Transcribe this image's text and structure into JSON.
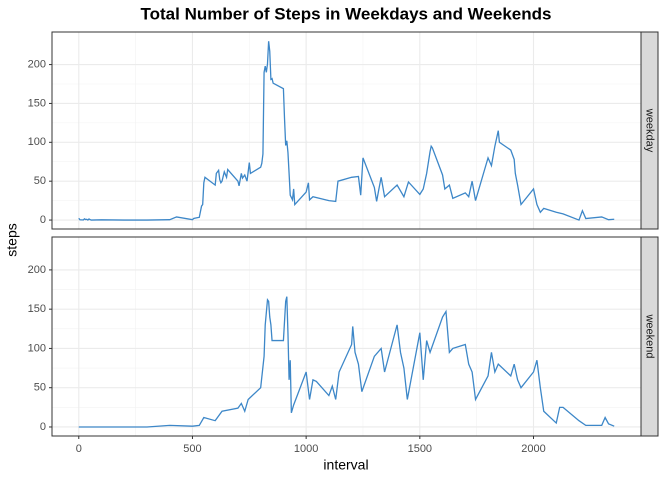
{
  "title": "Total Number of Steps in Weekdays and Weekends",
  "x_label": "interval",
  "y_label": "steps",
  "chart_data": [
    {
      "type": "line",
      "strip": "weekday",
      "color": "#3d87c8",
      "grid": true,
      "x": [
        0,
        5,
        10,
        15,
        20,
        25,
        30,
        35,
        40,
        45,
        50,
        55,
        100,
        200,
        300,
        400,
        430,
        500,
        505,
        520,
        530,
        540,
        545,
        550,
        555,
        600,
        605,
        615,
        620,
        625,
        630,
        640,
        650,
        655,
        700,
        705,
        715,
        720,
        730,
        740,
        745,
        750,
        755,
        800,
        805,
        810,
        815,
        820,
        825,
        830,
        835,
        840,
        845,
        850,
        855,
        900,
        905,
        910,
        915,
        920,
        925,
        930,
        940,
        945,
        950,
        1000,
        1010,
        1015,
        1030,
        1100,
        1130,
        1140,
        1200,
        1230,
        1240,
        1250,
        1300,
        1310,
        1320,
        1330,
        1345,
        1400,
        1430,
        1450,
        1500,
        1515,
        1530,
        1545,
        1550,
        1555,
        1600,
        1610,
        1630,
        1645,
        1700,
        1715,
        1730,
        1745,
        1800,
        1815,
        1830,
        1845,
        1850,
        1900,
        1915,
        1920,
        1930,
        1945,
        2000,
        2015,
        2030,
        2045,
        2100,
        2130,
        2200,
        2215,
        2230,
        2300,
        2330,
        2355
      ],
      "values": [
        2.3,
        0.4,
        0.2,
        0.2,
        0.1,
        1.6,
        0.6,
        1,
        0,
        1.4,
        0.5,
        0,
        0.3,
        0,
        0,
        0.5,
        4,
        0.5,
        2,
        3,
        3.5,
        18,
        20,
        48,
        55,
        45,
        60,
        64,
        52,
        48,
        50,
        62,
        55,
        65,
        50,
        44,
        60,
        54,
        58,
        50,
        62,
        74,
        60,
        68,
        73,
        85,
        190,
        198,
        190,
        201,
        230,
        217,
        181,
        182,
        176,
        169,
        130,
        96,
        102,
        87,
        60,
        32,
        26,
        40,
        20,
        36,
        48,
        26,
        30,
        25,
        24,
        50,
        55,
        56,
        32,
        80,
        42,
        24,
        40,
        55,
        30,
        45,
        30,
        49,
        33,
        40,
        60,
        88,
        95,
        93,
        58,
        40,
        45,
        28,
        35,
        30,
        50,
        25,
        80,
        70,
        95,
        115,
        100,
        90,
        78,
        60,
        45,
        20,
        40,
        20,
        10,
        15,
        10,
        8,
        0,
        12,
        2,
        4,
        0.5,
        1
      ],
      "xlim": [
        -117.75,
        2472.75
      ],
      "ylim": [
        -11.5,
        241.9
      ],
      "xticks": [
        0,
        500,
        1000,
        1500,
        2000
      ],
      "yticks": [
        0,
        50,
        100,
        150,
        200
      ]
    },
    {
      "type": "line",
      "strip": "weekend",
      "color": "#3d87c8",
      "grid": true,
      "x": [
        0,
        100,
        200,
        300,
        400,
        500,
        530,
        550,
        600,
        630,
        700,
        715,
        730,
        745,
        800,
        815,
        820,
        830,
        835,
        840,
        845,
        850,
        900,
        910,
        915,
        920,
        925,
        930,
        935,
        945,
        1000,
        1015,
        1030,
        1045,
        1100,
        1115,
        1130,
        1145,
        1200,
        1205,
        1215,
        1230,
        1245,
        1300,
        1330,
        1345,
        1400,
        1415,
        1430,
        1445,
        1500,
        1515,
        1530,
        1545,
        1600,
        1615,
        1630,
        1645,
        1700,
        1715,
        1730,
        1745,
        1800,
        1815,
        1830,
        1845,
        1900,
        1915,
        1930,
        1945,
        2000,
        2015,
        2030,
        2045,
        2100,
        2115,
        2130,
        2200,
        2230,
        2300,
        2315,
        2330,
        2355
      ],
      "values": [
        0,
        0,
        0,
        0,
        2,
        1,
        2,
        12,
        8,
        20,
        24,
        30,
        20,
        35,
        50,
        90,
        130,
        162,
        160,
        140,
        130,
        110,
        110,
        160,
        166,
        120,
        60,
        85,
        18,
        28,
        70,
        35,
        60,
        58,
        40,
        52,
        35,
        70,
        105,
        128,
        95,
        80,
        45,
        90,
        100,
        70,
        130,
        95,
        75,
        35,
        120,
        60,
        110,
        95,
        140,
        147,
        95,
        100,
        105,
        80,
        70,
        35,
        65,
        95,
        70,
        80,
        65,
        80,
        60,
        50,
        70,
        85,
        50,
        20,
        5,
        25,
        25,
        8,
        2,
        2,
        12,
        4,
        1
      ],
      "xlim": [
        -117.75,
        2472.75
      ],
      "ylim": [
        -11.5,
        241.9
      ],
      "xticks": [
        0,
        500,
        1000,
        1500,
        2000
      ],
      "yticks": [
        0,
        50,
        100,
        150,
        200
      ]
    }
  ]
}
